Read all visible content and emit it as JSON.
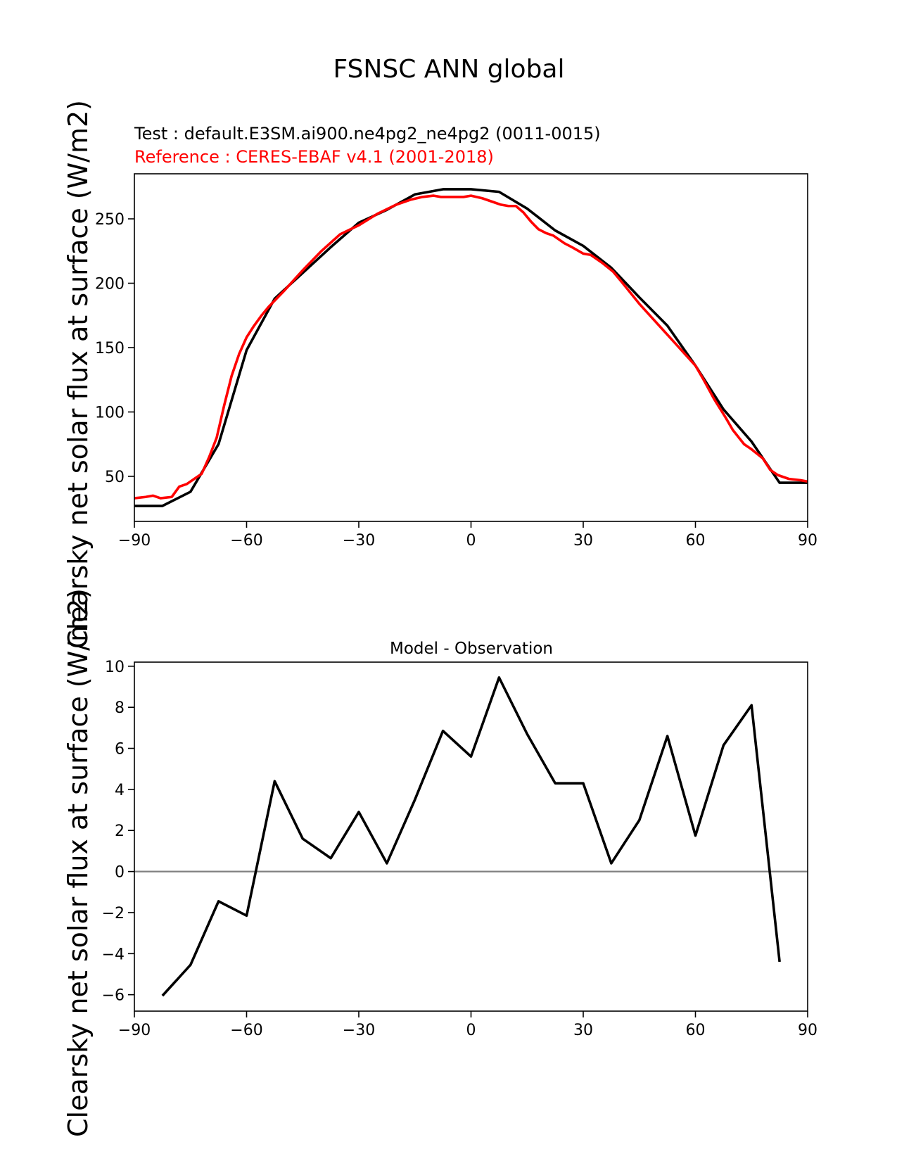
{
  "figure": {
    "suptitle": "FSNSC ANN global",
    "test_label": "Test : default.E3SM.ai900.ne4pg2_ne4pg2 (0011-0015)",
    "reference_label": "Reference : CERES-EBAF v4.1 (2001-2018)",
    "diff_title": "Model - Observation",
    "ylabel": "Clearsky net solar flux at surface (W/m2)"
  },
  "colors": {
    "test": "#000000",
    "reference": "#ff0000",
    "zero_line": "#808080"
  },
  "chart_data": [
    {
      "type": "line",
      "title": "",
      "xlabel": "",
      "ylabel": "Clearsky net solar flux at surface (W/m2)",
      "xlim": [
        -90,
        90
      ],
      "ylim": [
        15,
        285
      ],
      "xticks": [
        -90,
        -60,
        -30,
        0,
        30,
        60,
        90
      ],
      "yticks": [
        50,
        100,
        150,
        200,
        250
      ],
      "grid": false,
      "series": [
        {
          "name": "Test : default.E3SM.ai900.ne4pg2_ne4pg2 (0011-0015)",
          "color": "#000000",
          "x": [
            -90,
            -82.5,
            -75,
            -67.5,
            -60,
            -52.5,
            -45,
            -37.5,
            -30,
            -22.5,
            -15,
            -7.5,
            0,
            7.5,
            15,
            22.5,
            30,
            37.5,
            45,
            52.5,
            60,
            67.5,
            75,
            82.5,
            90
          ],
          "y": [
            27,
            27,
            38,
            75,
            148,
            188,
            208,
            228,
            247,
            257,
            269,
            273,
            273,
            271,
            258,
            241,
            229,
            212,
            189,
            167,
            136,
            102,
            77,
            45,
            45
          ]
        },
        {
          "name": "Reference : CERES-EBAF v4.1 (2001-2018)",
          "color": "#ff0000",
          "x": [
            -90,
            -87,
            -85,
            -83,
            -80,
            -78,
            -76,
            -74,
            -72,
            -70,
            -68,
            -66,
            -64,
            -62,
            -60,
            -58,
            -56,
            -54,
            -52,
            -50,
            -45,
            -40,
            -35,
            -30,
            -25,
            -20,
            -16,
            -13,
            -10,
            -8,
            -5,
            -2,
            0,
            3,
            6,
            8,
            10,
            12,
            14,
            16,
            18,
            20,
            22,
            25,
            27,
            30,
            32,
            35,
            38,
            40,
            45,
            50,
            55,
            60,
            62,
            65,
            68,
            70,
            73,
            75,
            78,
            80,
            82,
            85,
            88,
            90
          ],
          "y": [
            33,
            34,
            35,
            33,
            34,
            42,
            44,
            48,
            52,
            65,
            80,
            105,
            128,
            145,
            158,
            167,
            175,
            182,
            188,
            194,
            210,
            225,
            238,
            245,
            254,
            261,
            265,
            267,
            268,
            267,
            267,
            267,
            268,
            266,
            263,
            261,
            260,
            260,
            255,
            248,
            242,
            239,
            237,
            231,
            228,
            223,
            222,
            216,
            209,
            202,
            184,
            168,
            152,
            136,
            126,
            110,
            96,
            86,
            75,
            71,
            64,
            55,
            51,
            48,
            47,
            46
          ]
        }
      ]
    },
    {
      "type": "line",
      "title": "Model - Observation",
      "xlabel": "",
      "ylabel": "Clearsky net solar flux at surface (W/m2)",
      "xlim": [
        -90,
        90
      ],
      "ylim": [
        -6.8,
        10.2
      ],
      "xticks": [
        -90,
        -60,
        -30,
        0,
        30,
        60,
        90
      ],
      "yticks": [
        -6,
        -4,
        -2,
        0,
        2,
        4,
        6,
        8,
        10
      ],
      "grid": false,
      "zero_line": true,
      "series": [
        {
          "name": "Model - Observation",
          "color": "#000000",
          "x": [
            -82.5,
            -75,
            -67.5,
            -60,
            -52.5,
            -45,
            -37.5,
            -30,
            -22.5,
            -15,
            -7.5,
            0,
            7.5,
            15,
            22.5,
            30,
            37.5,
            45,
            52.5,
            60,
            67.5,
            75,
            82.5
          ],
          "y": [
            -6.05,
            -4.55,
            -1.45,
            -2.15,
            4.4,
            1.6,
            0.65,
            2.9,
            0.4,
            3.5,
            6.85,
            5.6,
            9.45,
            6.7,
            4.3,
            4.3,
            0.4,
            2.5,
            6.6,
            1.75,
            6.15,
            8.1,
            -4.4
          ]
        }
      ]
    }
  ]
}
